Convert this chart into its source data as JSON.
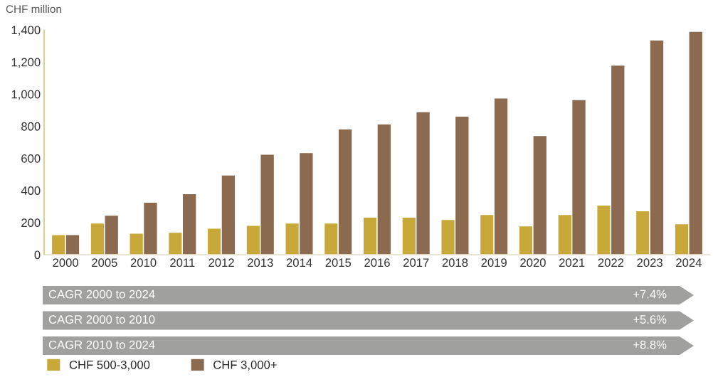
{
  "chart_data": {
    "type": "bar",
    "ylabel": "CHF million",
    "categories": [
      "2000",
      "2005",
      "2010",
      "2011",
      "2012",
      "2013",
      "2014",
      "2015",
      "2016",
      "2017",
      "2018",
      "2019",
      "2020",
      "2021",
      "2022",
      "2023",
      "2024"
    ],
    "series": [
      {
        "name": "CHF 500-3,000",
        "color": "#c9a83a",
        "values": [
          125,
          197,
          134,
          139,
          165,
          183,
          197,
          197,
          233,
          233,
          219,
          250,
          179,
          250,
          309,
          273,
          192
        ]
      },
      {
        "name": "CHF 3,000+",
        "color": "#8b6a50",
        "values": [
          125,
          246,
          326,
          380,
          496,
          626,
          635,
          783,
          814,
          890,
          863,
          975,
          742,
          966,
          1181,
          1337,
          1391
        ]
      }
    ],
    "ylim": [
      0,
      1400
    ],
    "yticks": [
      0,
      200,
      400,
      600,
      800,
      {
        "value": 1000,
        "label": "1,000"
      },
      {
        "value": 1200,
        "label": "1,200"
      },
      {
        "value": 1400,
        "label": "1,400"
      }
    ],
    "grid": false,
    "legend": "bottom",
    "annotations": [
      "CAGR 2000 to 2024",
      "+7.4%",
      "CAGR 2000 to 2010",
      "+5.6%",
      "CAGR 2010 to 2024",
      "+8.8%"
    ]
  }
}
